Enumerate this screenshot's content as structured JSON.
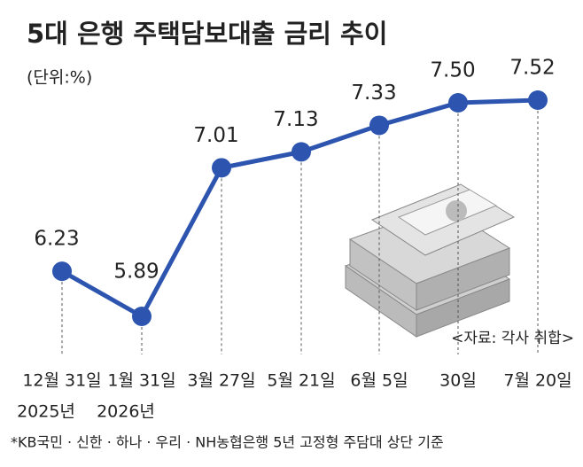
{
  "chart_data": {
    "type": "line",
    "title": "5대 은행 주택담보대출 금리 추이",
    "subtitle": "(단위:%)",
    "categories": [
      "12월 31일",
      "1월 31일",
      "3월 27일",
      "5월 21일",
      "6월 5일",
      "30일",
      "7월 20일"
    ],
    "category_years": [
      "2025년",
      "2026년",
      null,
      null,
      null,
      null,
      null
    ],
    "values": [
      6.23,
      5.89,
      7.01,
      7.13,
      7.33,
      7.5,
      7.52
    ],
    "value_labels": [
      "6.23",
      "5.89",
      "7.01",
      "7.13",
      "7.33",
      "7.50",
      "7.52"
    ],
    "color": "#2d55b0",
    "source": "<자료: 각사 취합>",
    "footnote": "*KB국민 · 신한 · 하나 · 우리 · NH농협은행 5년 고정형 주담대 상단 기준"
  }
}
